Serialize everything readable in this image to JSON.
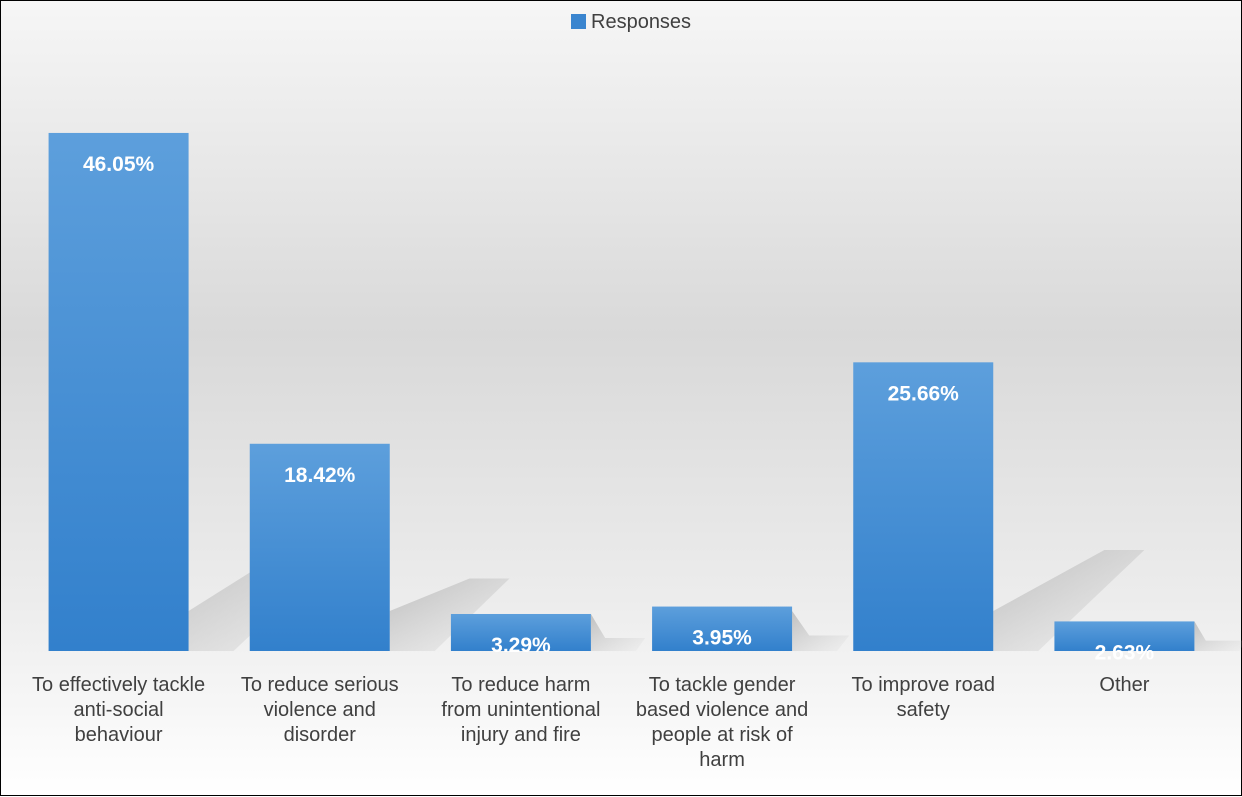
{
  "chart_data": {
    "type": "bar",
    "title": "",
    "xlabel": "",
    "ylabel": "",
    "ylim": [
      0,
      52
    ],
    "grid": false,
    "legend": "top-center",
    "series": [
      {
        "name": "Responses",
        "color": "#3a85cf",
        "values": [
          46.05,
          18.42,
          3.29,
          3.95,
          25.66,
          2.63
        ]
      }
    ],
    "categories": [
      "To effectively tackle anti-social behaviour",
      "To reduce serious violence and disorder",
      "To reduce harm from unintentional injury and fire",
      "To tackle gender based violence and people at risk of harm",
      "To improve road safety",
      "Other"
    ],
    "category_lines": [
      [
        "To effectively tackle",
        "anti-social",
        "behaviour"
      ],
      [
        "To reduce serious",
        "violence and",
        "disorder"
      ],
      [
        "To reduce harm",
        "from unintentional",
        "injury and fire"
      ],
      [
        "To tackle gender",
        "based violence and",
        "people at risk of",
        "harm"
      ],
      [
        "To improve road",
        "safety"
      ],
      [
        "Other"
      ]
    ],
    "data_labels": [
      "46.05%",
      "18.42%",
      "3.29%",
      "3.95%",
      "25.66%",
      "2.63%"
    ]
  }
}
